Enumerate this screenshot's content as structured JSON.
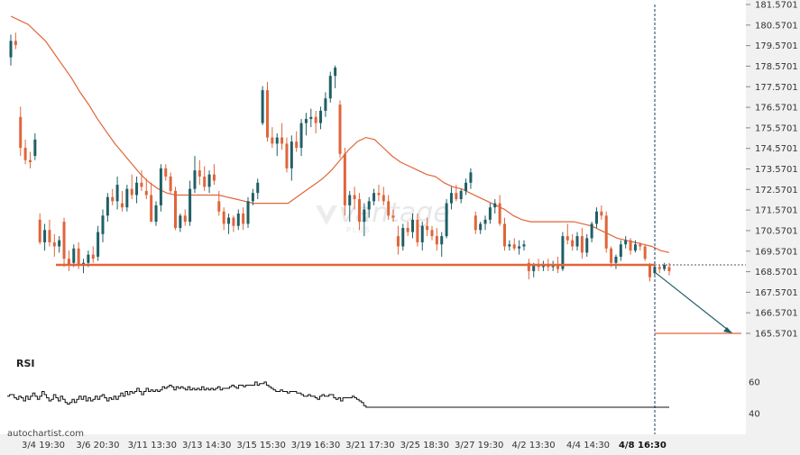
{
  "chart_data": {
    "type": "candlestick",
    "price_axis": {
      "ticks": [
        "181.5701",
        "180.5701",
        "179.5701",
        "178.5701",
        "177.5701",
        "176.5701",
        "175.5701",
        "174.5701",
        "173.5701",
        "172.5701",
        "171.5701",
        "170.5701",
        "169.5701",
        "168.5701",
        "167.5701",
        "166.5701",
        "165.5701"
      ],
      "range": [
        165.0,
        182.0
      ]
    },
    "time_axis": {
      "ticks": [
        "3/4 19:30",
        "3/6 20:30",
        "3/11 13:30",
        "3/13 14:30",
        "3/15 15:30",
        "3/19 16:30",
        "3/21 17:30",
        "3/25 18:30",
        "3/27 19:30",
        "4/2 13:30",
        "4/4 14:30",
        "4/8 16:30"
      ],
      "highlight": "4/8 16:30"
    },
    "candles": [
      [
        179.0,
        180.1,
        178.6,
        179.8
      ],
      [
        179.8,
        180.2,
        179.4,
        179.6
      ],
      [
        176.1,
        176.6,
        174.2,
        174.6
      ],
      [
        174.6,
        175.0,
        173.8,
        174.0
      ],
      [
        174.0,
        174.4,
        173.6,
        173.9
      ],
      [
        174.2,
        175.3,
        174.0,
        175.0
      ],
      [
        171.1,
        171.4,
        169.9,
        170.0
      ],
      [
        170.0,
        170.9,
        169.6,
        170.6
      ],
      [
        170.6,
        171.1,
        169.8,
        170.0
      ],
      [
        170.0,
        170.4,
        169.3,
        169.8
      ],
      [
        169.8,
        170.3,
        169.5,
        170.1
      ],
      [
        171.0,
        171.2,
        168.8,
        169.2
      ],
      [
        169.2,
        169.6,
        168.6,
        168.9
      ],
      [
        169.0,
        169.9,
        168.8,
        169.7
      ],
      [
        169.7,
        170.0,
        168.7,
        168.9
      ],
      [
        168.9,
        169.2,
        168.5,
        169.0
      ],
      [
        169.0,
        169.6,
        168.8,
        169.4
      ],
      [
        169.4,
        169.8,
        169.0,
        169.2
      ],
      [
        169.3,
        170.8,
        169.1,
        170.5
      ],
      [
        170.4,
        171.6,
        170.0,
        171.3
      ],
      [
        171.3,
        172.4,
        171.0,
        172.2
      ],
      [
        172.2,
        172.6,
        171.8,
        172.0
      ],
      [
        172.0,
        173.2,
        171.6,
        172.8
      ],
      [
        171.9,
        172.5,
        171.5,
        171.7
      ],
      [
        171.7,
        172.8,
        171.5,
        172.6
      ],
      [
        172.6,
        173.3,
        172.1,
        172.3
      ],
      [
        172.3,
        173.2,
        171.9,
        172.9
      ],
      [
        172.9,
        173.5,
        172.5,
        172.7
      ],
      [
        172.5,
        173.1,
        172.1,
        172.3
      ],
      [
        172.3,
        172.9,
        171.0,
        171.0
      ],
      [
        171.0,
        172.0,
        170.8,
        171.8
      ],
      [
        171.8,
        173.8,
        171.5,
        173.6
      ],
      [
        173.6,
        173.8,
        173.0,
        173.2
      ],
      [
        173.2,
        173.4,
        172.4,
        172.5
      ],
      [
        172.5,
        172.7,
        170.6,
        170.7
      ],
      [
        170.7,
        171.4,
        170.5,
        171.3
      ],
      [
        171.3,
        171.6,
        170.8,
        171.0
      ],
      [
        171.0,
        173.0,
        170.8,
        172.6
      ],
      [
        172.6,
        174.2,
        172.4,
        173.5
      ],
      [
        173.5,
        174.0,
        172.8,
        173.2
      ],
      [
        173.2,
        173.7,
        172.5,
        172.7
      ],
      [
        172.7,
        173.5,
        172.4,
        173.3
      ],
      [
        173.3,
        173.8,
        172.8,
        173.0
      ],
      [
        172.0,
        172.5,
        171.3,
        171.5
      ],
      [
        171.5,
        171.7,
        170.6,
        170.9
      ],
      [
        170.9,
        171.4,
        170.4,
        171.2
      ],
      [
        171.2,
        171.3,
        170.5,
        170.8
      ],
      [
        170.8,
        171.6,
        170.6,
        171.4
      ],
      [
        171.4,
        171.7,
        170.6,
        170.9
      ],
      [
        170.9,
        172.2,
        170.7,
        172.0
      ],
      [
        172.0,
        172.6,
        171.8,
        172.4
      ],
      [
        172.4,
        173.1,
        172.1,
        172.9
      ],
      [
        175.8,
        177.6,
        175.7,
        177.4
      ],
      [
        177.4,
        177.8,
        174.9,
        175.1
      ],
      [
        175.1,
        175.6,
        174.6,
        174.8
      ],
      [
        174.8,
        175.3,
        174.2,
        175.1
      ],
      [
        175.1,
        175.8,
        174.5,
        174.8
      ],
      [
        174.8,
        175.1,
        173.4,
        173.6
      ],
      [
        173.6,
        175.2,
        173.0,
        174.9
      ],
      [
        174.9,
        175.4,
        174.4,
        174.6
      ],
      [
        174.6,
        176.0,
        174.2,
        175.8
      ],
      [
        175.8,
        176.3,
        175.2,
        176.0
      ],
      [
        176.0,
        176.5,
        175.6,
        176.1
      ],
      [
        176.1,
        176.4,
        175.3,
        175.8
      ],
      [
        175.8,
        176.6,
        175.5,
        176.4
      ],
      [
        176.4,
        177.3,
        176.1,
        177.0
      ],
      [
        177.0,
        178.3,
        176.8,
        178.1
      ],
      [
        178.1,
        178.6,
        177.5,
        178.5
      ],
      [
        176.7,
        176.9,
        174.1,
        174.3
      ],
      [
        174.3,
        174.6,
        171.3,
        171.8
      ],
      [
        171.8,
        172.5,
        171.0,
        172.3
      ],
      [
        172.3,
        172.7,
        171.6,
        172.1
      ],
      [
        172.1,
        172.4,
        170.6,
        171.0
      ],
      [
        171.0,
        171.9,
        170.3,
        171.6
      ],
      [
        171.6,
        172.2,
        171.2,
        172.0
      ],
      [
        172.0,
        172.6,
        171.8,
        172.4
      ],
      [
        172.4,
        172.8,
        172.0,
        172.3
      ],
      [
        172.3,
        172.7,
        171.8,
        172.0
      ],
      [
        172.0,
        172.3,
        171.1,
        171.3
      ],
      [
        171.3,
        171.6,
        171.0,
        171.2
      ],
      [
        170.3,
        170.8,
        169.4,
        169.8
      ],
      [
        169.8,
        170.9,
        169.6,
        170.7
      ],
      [
        170.7,
        171.0,
        170.3,
        170.5
      ],
      [
        170.5,
        171.4,
        170.2,
        171.1
      ],
      [
        171.1,
        171.4,
        169.8,
        170.0
      ],
      [
        170.0,
        171.0,
        169.6,
        170.8
      ],
      [
        170.8,
        171.2,
        170.3,
        170.6
      ],
      [
        170.6,
        170.8,
        170.1,
        170.3
      ],
      [
        170.3,
        170.7,
        169.6,
        169.9
      ],
      [
        169.9,
        170.5,
        169.3,
        170.3
      ],
      [
        170.3,
        172.1,
        170.2,
        171.9
      ],
      [
        171.9,
        172.7,
        171.6,
        172.4
      ],
      [
        172.4,
        172.8,
        172.0,
        172.1
      ],
      [
        172.1,
        172.6,
        171.9,
        172.5
      ],
      [
        172.5,
        173.1,
        172.3,
        172.9
      ],
      [
        172.9,
        173.6,
        172.6,
        173.4
      ],
      [
        171.3,
        171.5,
        170.4,
        170.6
      ],
      [
        170.6,
        171.0,
        170.4,
        170.9
      ],
      [
        170.9,
        171.3,
        170.6,
        171.1
      ],
      [
        171.1,
        171.9,
        170.9,
        171.7
      ],
      [
        171.7,
        172.1,
        171.4,
        171.9
      ],
      [
        171.9,
        172.3,
        170.8,
        170.9
      ],
      [
        170.9,
        171.2,
        169.6,
        169.8
      ],
      [
        169.8,
        170.1,
        169.6,
        169.9
      ],
      [
        169.9,
        170.2,
        169.6,
        169.7
      ],
      [
        169.7,
        170.1,
        169.4,
        169.8
      ],
      [
        169.8,
        170.1,
        169.6,
        169.9
      ],
      [
        169.0,
        169.2,
        168.2,
        168.6
      ],
      [
        168.6,
        169.0,
        168.3,
        168.9
      ],
      [
        168.9,
        169.2,
        168.6,
        168.8
      ],
      [
        168.8,
        169.1,
        168.6,
        168.9
      ],
      [
        168.9,
        169.2,
        168.6,
        168.8
      ],
      [
        168.8,
        169.1,
        168.6,
        168.9
      ],
      [
        168.9,
        169.3,
        168.5,
        168.7
      ],
      [
        168.7,
        170.5,
        168.6,
        170.3
      ],
      [
        170.3,
        170.9,
        169.9,
        170.1
      ],
      [
        170.1,
        170.4,
        169.6,
        169.8
      ],
      [
        169.8,
        170.5,
        169.6,
        170.3
      ],
      [
        170.3,
        170.7,
        169.2,
        169.5
      ],
      [
        169.5,
        170.4,
        169.3,
        170.2
      ],
      [
        170.2,
        171.0,
        170.0,
        170.9
      ],
      [
        170.9,
        171.7,
        170.7,
        171.5
      ],
      [
        171.5,
        171.8,
        171.1,
        171.3
      ],
      [
        171.3,
        171.5,
        169.5,
        169.7
      ],
      [
        169.7,
        169.8,
        168.8,
        169.0
      ],
      [
        169.0,
        169.4,
        168.7,
        169.3
      ],
      [
        169.3,
        170.1,
        169.1,
        169.9
      ],
      [
        169.9,
        170.3,
        169.7,
        170.1
      ],
      [
        170.1,
        170.2,
        169.4,
        169.6
      ],
      [
        169.6,
        170.1,
        169.5,
        169.9
      ],
      [
        169.9,
        170.0,
        169.6,
        169.8
      ],
      [
        169.8,
        169.9,
        169.1,
        169.2
      ],
      [
        168.9,
        169.0,
        168.1,
        168.3
      ],
      [
        168.5,
        168.9,
        168.4,
        168.8
      ],
      [
        168.8,
        168.9,
        168.5,
        168.7
      ],
      [
        168.7,
        169.0,
        168.6,
        168.9
      ],
      [
        168.8,
        169.0,
        168.4,
        168.6
      ]
    ],
    "sma": [
      181.0,
      180.8,
      180.6,
      180.2,
      179.8,
      179.2,
      178.6,
      178.0,
      177.3,
      176.7,
      176.0,
      175.4,
      174.8,
      174.3,
      173.8,
      173.3,
      172.9,
      172.6,
      172.4,
      172.3,
      172.3,
      172.3,
      172.3,
      172.3,
      172.3,
      172.2,
      172.1,
      172.0,
      171.9,
      171.9,
      171.9,
      171.9,
      171.9,
      172.2,
      172.5,
      172.8,
      173.1,
      173.5,
      174.0,
      174.5,
      174.9,
      175.1,
      175.0,
      174.6,
      174.2,
      173.9,
      173.7,
      173.5,
      173.3,
      173.2,
      172.9,
      172.7,
      172.6,
      172.4,
      172.2,
      172.0,
      171.8,
      171.6,
      171.3,
      171.1,
      171.0,
      171.0,
      171.0,
      171.0,
      171.0,
      171.0,
      170.9,
      170.8,
      170.6,
      170.4,
      170.2,
      170.1,
      170.0,
      169.9,
      169.8,
      169.6,
      169.5
    ],
    "levels": {
      "support": 168.9,
      "last_price": 168.9,
      "forecast_target": 165.5701
    },
    "rsi": {
      "label": "RSI",
      "ticks": [
        "60",
        "40"
      ],
      "range": [
        30,
        70
      ],
      "values": [
        51,
        52,
        52,
        50,
        49,
        51,
        50,
        48,
        51,
        49,
        51,
        53,
        51,
        49,
        51,
        54,
        52,
        50,
        48,
        49,
        52,
        50,
        48,
        51,
        49,
        47,
        46,
        47,
        49,
        47,
        49,
        51,
        49,
        51,
        48,
        50,
        48,
        49,
        51,
        49,
        51,
        52,
        50,
        48,
        50,
        49,
        51,
        49,
        51,
        53,
        51,
        54,
        52,
        54,
        53,
        54,
        56,
        54,
        52,
        54,
        56,
        54,
        55,
        54,
        55,
        54,
        55,
        57,
        56,
        57,
        58,
        57,
        55,
        57,
        56,
        57,
        56,
        55,
        57,
        55,
        56,
        55,
        56,
        55,
        57,
        55,
        56,
        55,
        56,
        55,
        56,
        57,
        55,
        56,
        56,
        56,
        57,
        58,
        57,
        56,
        58,
        58,
        57,
        58,
        58,
        58,
        58,
        60,
        58,
        59,
        59,
        60,
        58,
        57,
        56,
        55,
        54,
        54,
        55,
        54,
        54,
        53,
        54,
        54,
        54,
        53,
        53,
        52,
        51,
        51,
        52,
        51,
        51,
        50,
        49,
        51,
        52,
        51,
        51,
        52,
        52,
        50,
        49,
        50,
        48,
        50,
        50,
        50,
        50,
        51,
        50,
        49,
        48,
        47,
        45,
        44,
        44,
        44,
        44,
        44,
        44,
        44,
        44,
        44,
        44,
        44,
        44,
        44,
        44,
        44,
        44,
        44,
        44,
        44,
        44,
        44,
        44,
        44,
        44,
        44,
        44,
        44,
        44,
        44,
        44,
        44,
        44,
        44,
        44,
        44,
        44,
        44,
        44,
        44,
        44,
        44,
        44,
        44,
        44,
        44,
        44,
        44,
        44,
        44,
        44,
        44,
        44,
        44,
        44,
        44,
        44,
        44,
        44,
        44,
        44,
        44,
        44,
        44,
        44,
        44,
        44,
        44,
        44,
        44,
        44,
        44,
        44,
        44,
        44,
        44,
        44,
        44,
        44,
        44,
        44,
        44,
        44,
        44,
        44,
        44,
        44,
        44,
        44,
        44,
        44,
        44,
        44,
        44,
        44,
        44,
        44,
        44,
        44,
        44,
        44,
        44,
        44,
        44,
        44,
        44,
        44,
        44,
        44,
        44,
        44,
        44,
        44,
        44,
        44,
        44,
        44,
        44,
        44,
        44,
        44,
        44,
        44,
        44,
        44,
        44,
        44,
        44,
        44,
        44,
        44,
        44,
        44
      ]
    },
    "grid": false,
    "legend": "none"
  },
  "watermark": {
    "brand": "vantage",
    "sub": "PLUS"
  },
  "footer": {
    "source": "autochartist.com"
  },
  "colors": {
    "bull": "#1f5f66",
    "bear": "#e0653a",
    "sma": "#e0653a",
    "support": "#e0653a",
    "forecast_arrow": "#1f5f66",
    "target": "#e0653a",
    "axis_panel": "#f1f1f1",
    "rsi_line": "#111111"
  }
}
